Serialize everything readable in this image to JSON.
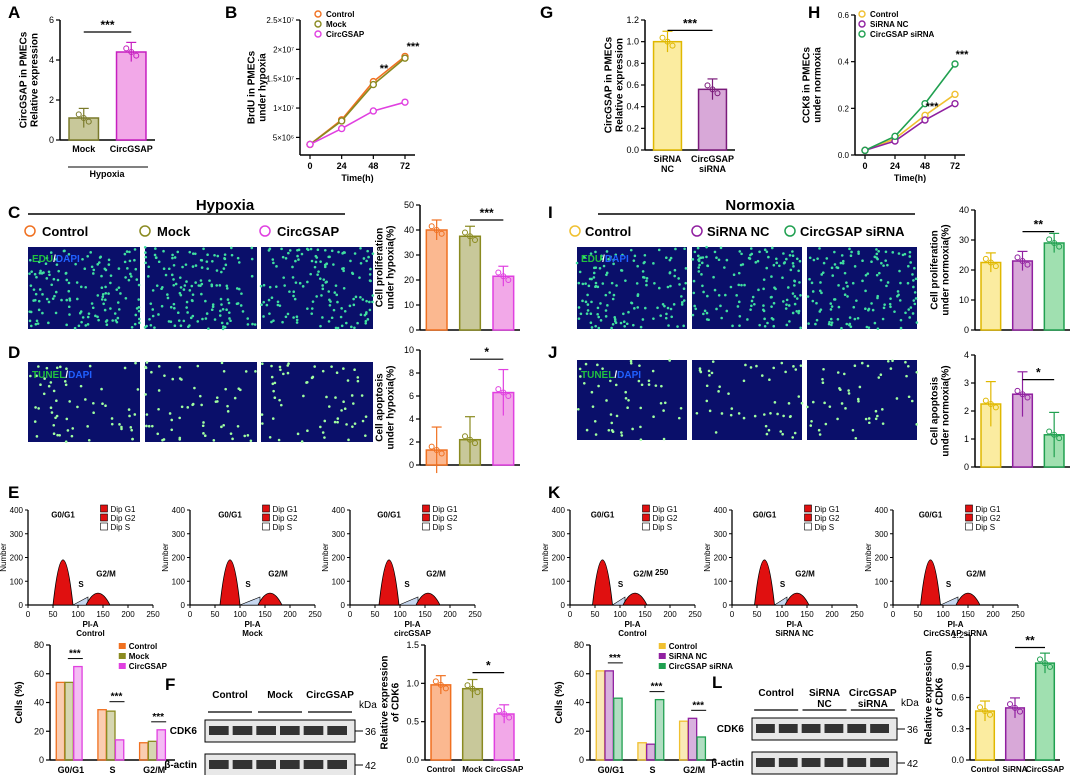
{
  "panels": {
    "A": {
      "letter": "A",
      "ylabel": "CircGSAP in PMECs\nRelative expression",
      "yticks": [
        "0",
        "2",
        "4",
        "6"
      ],
      "cats": [
        "Mock",
        "CircGSAP"
      ],
      "group": "Hypoxia",
      "values": [
        1.1,
        4.4
      ],
      "sig": "***",
      "colors": [
        "#c8c89a",
        "#f2a8e8"
      ],
      "edge": [
        "#7a7a2a",
        "#c61fc0"
      ]
    },
    "G": {
      "letter": "G",
      "ylabel": "CircGSAP in PMECs\nRelative expression",
      "yticks": [
        "0.0",
        "0.2",
        "0.4",
        "0.6",
        "0.8",
        "1.0",
        "1.2"
      ],
      "cats": [
        "SiRNA\nNC",
        "CircGSAP\nsiRNA"
      ],
      "values": [
        1.0,
        0.56
      ],
      "sig": "***",
      "colors": [
        "#fbeca0",
        "#d8a8d8"
      ],
      "edge": [
        "#e0b800",
        "#7a1a7a"
      ]
    },
    "B": {
      "letter": "B",
      "ylabel": "BrdU in PMECs\nunder hypoxia",
      "xlabel": "Time(h)",
      "x": [
        0,
        24,
        48,
        72
      ],
      "yticks": [
        "5×10⁶",
        "1×10⁷",
        "1.5×10⁷",
        "2×10⁷",
        "2.5×10⁷"
      ],
      "series": [
        {
          "name": "Control",
          "color": "#f07020",
          "values": [
            3.8,
            8.0,
            14.5,
            18.8
          ]
        },
        {
          "name": "Mock",
          "color": "#8a8a20",
          "values": [
            3.8,
            7.8,
            14.0,
            18.5
          ]
        },
        {
          "name": "CircGSAP",
          "color": "#e040e0",
          "values": [
            3.8,
            6.5,
            9.5,
            11.0
          ]
        }
      ],
      "sig": [
        "**",
        "***"
      ]
    },
    "H": {
      "letter": "H",
      "ylabel": "CCK8 in PMECs\nunder normoxia",
      "xlabel": "Time(h)",
      "x": [
        0,
        24,
        48,
        72
      ],
      "yticks": [
        "0.0",
        "0.2",
        "0.4",
        "0.6"
      ],
      "series": [
        {
          "name": "Control",
          "color": "#f0c030",
          "values": [
            0.02,
            0.07,
            0.17,
            0.26
          ]
        },
        {
          "name": "SiRNA NC",
          "color": "#9020a0",
          "values": [
            0.02,
            0.06,
            0.15,
            0.22
          ]
        },
        {
          "name": "CircGSAP siRNA",
          "color": "#20a050",
          "values": [
            0.02,
            0.08,
            0.22,
            0.39
          ]
        }
      ],
      "sig": [
        "***",
        "***"
      ]
    },
    "C": {
      "letter": "C",
      "title": "Hypoxia",
      "legend": [
        "Control",
        "Mock",
        "CircGSAP"
      ],
      "legend_colors": [
        "#f07020",
        "#8a8a20",
        "#e040e0"
      ],
      "stain": [
        "EDU",
        "/",
        "DAPI"
      ],
      "ylabel": "Cell proliferation\nunder hypoxia(%)",
      "yticks": [
        "0",
        "10",
        "20",
        "30",
        "40",
        "50"
      ],
      "values": [
        40,
        37.5,
        21.5
      ],
      "sig": "***"
    },
    "I": {
      "letter": "I",
      "title": "Normoxia",
      "legend": [
        "Control",
        "SiRNA NC",
        "CircGSAP siRNA"
      ],
      "legend_colors": [
        "#f0c030",
        "#9020a0",
        "#20a050"
      ],
      "stain": [
        "EDU",
        "/",
        "DAPI"
      ],
      "ylabel": "Cell proliferation\nunder normoxia(%)",
      "yticks": [
        "0",
        "10",
        "20",
        "30",
        "40"
      ],
      "values": [
        22.5,
        23,
        29
      ],
      "sig": "**"
    },
    "D": {
      "letter": "D",
      "stain": [
        "TUNEL",
        "/",
        "DAPI"
      ],
      "ylabel": "Cell apoptosis\nunder hypoxia(%)",
      "yticks": [
        "0",
        "2",
        "4",
        "6",
        "8",
        "10"
      ],
      "values": [
        1.3,
        2.2,
        6.3
      ],
      "sig": "*"
    },
    "J": {
      "letter": "J",
      "stain": [
        "TUNEL",
        "/",
        "DAPI"
      ],
      "ylabel": "Cell apoptosis\nunder normoxia(%)",
      "yticks": [
        "0",
        "1",
        "2",
        "3",
        "4"
      ],
      "values": [
        2.25,
        2.6,
        1.15
      ],
      "sig": "*"
    },
    "E": {
      "letter": "E",
      "hist_labels": [
        "Control",
        "Mock",
        "circGSAP"
      ],
      "hist_legend": [
        "Dip G1",
        "Dip G2",
        "Dip S"
      ],
      "phase_labels": [
        "G0/G1",
        "S",
        "G2/M"
      ],
      "xticks": [
        "0",
        "50",
        "100",
        "150",
        "200",
        "250"
      ],
      "yticks": [
        "0",
        "100",
        "200",
        "300",
        "400"
      ],
      "xaxis": "PI-A",
      "ylab": "Number"
    },
    "K": {
      "letter": "K",
      "hist_labels": [
        "Control",
        "SiRNA NC",
        "CircGSAP siRNA"
      ],
      "hist_legend": [
        "Dip G1",
        "Dip G2",
        "Dip S"
      ],
      "phase_labels": [
        "G0/G1",
        "S",
        "G2/M"
      ],
      "xticks": [
        "0",
        "50",
        "100",
        "150",
        "200",
        "250"
      ],
      "yticks": [
        "0",
        "100",
        "200",
        "300",
        "400"
      ],
      "xaxis": "PI-A",
      "ylab": "Number",
      "extra": "250"
    },
    "Ecell": {
      "ylabel": "Cells (%)",
      "yticks": [
        "0",
        "20",
        "40",
        "60",
        "80"
      ],
      "cats": [
        "G0/G1",
        "S",
        "G2/M"
      ],
      "legend": [
        "Control",
        "Mock",
        "CircGSAP"
      ],
      "colors": [
        "#f07020",
        "#8a8a20",
        "#e040e0"
      ],
      "values": [
        [
          54,
          54,
          65
        ],
        [
          35,
          34,
          14
        ],
        [
          12,
          13,
          21
        ]
      ],
      "sig": "***"
    },
    "Kcell": {
      "ylabel": "Cells (%)",
      "yticks": [
        "0",
        "20",
        "40",
        "60",
        "80"
      ],
      "cats": [
        "G0/G1",
        "S",
        "G2/M"
      ],
      "legend": [
        "Control",
        "SiRNA NC",
        "CircGSAP siRNA"
      ],
      "colors": [
        "#f0c030",
        "#9020a0",
        "#20a050"
      ],
      "values": [
        [
          62,
          62,
          43
        ],
        [
          12,
          11,
          42
        ],
        [
          27,
          29,
          16
        ]
      ],
      "sig": "***"
    },
    "F": {
      "letter": "F",
      "lanes": [
        "Control",
        "Mock",
        "CircGSAP"
      ],
      "proteins": [
        "CDK6",
        "β-actin"
      ],
      "kda": [
        "kDa",
        "36",
        "42"
      ],
      "ylabel": "Relative expression\nof CDK6",
      "yticks": [
        "0.0",
        "0.5",
        "1.0",
        "1.5"
      ],
      "cats": [
        "Control",
        "Mock",
        "CircGSAP"
      ],
      "values": [
        0.98,
        0.93,
        0.6
      ],
      "sig": "*"
    },
    "L": {
      "letter": "L",
      "lanes": [
        "Control",
        "SiRNA\nNC",
        "CircGSAP\nsiRNA"
      ],
      "proteins": [
        "CDK6",
        "β-actin"
      ],
      "kda": [
        "kDa",
        "36",
        "42"
      ],
      "ylabel": "Relative expression\nof CDK6",
      "yticks": [
        "0.0",
        "0.3",
        "0.6",
        "0.9",
        "1.2"
      ],
      "cats": [
        "Control",
        "SiRNA\nNC",
        "CircGSAP\nsiRNA"
      ],
      "values": [
        0.47,
        0.5,
        0.93
      ],
      "sig": "**"
    }
  },
  "chart_data": [
    {
      "type": "bar",
      "title": "A",
      "categories": [
        "Mock",
        "CircGSAP"
      ],
      "values": [
        1.1,
        4.4
      ],
      "ylabel": "CircGSAP in PMECs Relative expression",
      "ylim": [
        0,
        6
      ]
    },
    {
      "type": "line",
      "title": "B",
      "x": [
        0,
        24,
        48,
        72
      ],
      "series": [
        {
          "name": "Control",
          "values": [
            3.8,
            8.0,
            14.5,
            18.8
          ]
        },
        {
          "name": "Mock",
          "values": [
            3.8,
            7.8,
            14.0,
            18.5
          ]
        },
        {
          "name": "CircGSAP",
          "values": [
            3.8,
            6.5,
            9.5,
            11.0
          ]
        }
      ],
      "ylabel": "BrdU in PMECs under hypoxia (×10⁶)",
      "xlabel": "Time(h)"
    },
    {
      "type": "bar",
      "title": "G",
      "categories": [
        "SiRNA NC",
        "CircGSAP siRNA"
      ],
      "values": [
        1.0,
        0.56
      ],
      "ylim": [
        0,
        1.2
      ]
    },
    {
      "type": "line",
      "title": "H",
      "x": [
        0,
        24,
        48,
        72
      ],
      "series": [
        {
          "name": "Control",
          "values": [
            0.02,
            0.07,
            0.17,
            0.26
          ]
        },
        {
          "name": "SiRNA NC",
          "values": [
            0.02,
            0.06,
            0.15,
            0.22
          ]
        },
        {
          "name": "CircGSAP siRNA",
          "values": [
            0.02,
            0.08,
            0.22,
            0.39
          ]
        }
      ],
      "ylim": [
        0,
        0.6
      ]
    },
    {
      "type": "bar",
      "title": "C",
      "categories": [
        "Control",
        "Mock",
        "CircGSAP"
      ],
      "values": [
        40,
        37.5,
        21.5
      ],
      "ylim": [
        0,
        50
      ]
    },
    {
      "type": "bar",
      "title": "I",
      "categories": [
        "Control",
        "SiRNA NC",
        "CircGSAP siRNA"
      ],
      "values": [
        22.5,
        23,
        29
      ],
      "ylim": [
        0,
        40
      ]
    },
    {
      "type": "bar",
      "title": "D",
      "categories": [
        "Control",
        "Mock",
        "CircGSAP"
      ],
      "values": [
        1.3,
        2.2,
        6.3
      ],
      "ylim": [
        0,
        10
      ]
    },
    {
      "type": "bar",
      "title": "J",
      "categories": [
        "Control",
        "SiRNA NC",
        "CircGSAP siRNA"
      ],
      "values": [
        2.25,
        2.6,
        1.15
      ],
      "ylim": [
        0,
        4
      ]
    },
    {
      "type": "bar",
      "title": "E cells",
      "categories": [
        "G0/G1",
        "S",
        "G2/M"
      ],
      "series": [
        {
          "name": "Control",
          "values": [
            54,
            35,
            12
          ]
        },
        {
          "name": "Mock",
          "values": [
            54,
            34,
            13
          ]
        },
        {
          "name": "CircGSAP",
          "values": [
            65,
            14,
            21
          ]
        }
      ],
      "ylim": [
        0,
        80
      ]
    },
    {
      "type": "bar",
      "title": "K cells",
      "categories": [
        "G0/G1",
        "S",
        "G2/M"
      ],
      "series": [
        {
          "name": "Control",
          "values": [
            62,
            12,
            27
          ]
        },
        {
          "name": "SiRNA NC",
          "values": [
            62,
            11,
            29
          ]
        },
        {
          "name": "CircGSAP siRNA",
          "values": [
            43,
            42,
            16
          ]
        }
      ],
      "ylim": [
        0,
        80
      ]
    },
    {
      "type": "bar",
      "title": "F",
      "categories": [
        "Control",
        "Mock",
        "CircGSAP"
      ],
      "values": [
        0.98,
        0.93,
        0.6
      ],
      "ylim": [
        0,
        1.5
      ]
    },
    {
      "type": "bar",
      "title": "L",
      "categories": [
        "Control",
        "SiRNA NC",
        "CircGSAP siRNA"
      ],
      "values": [
        0.47,
        0.5,
        0.93
      ],
      "ylim": [
        0,
        1.2
      ]
    }
  ]
}
